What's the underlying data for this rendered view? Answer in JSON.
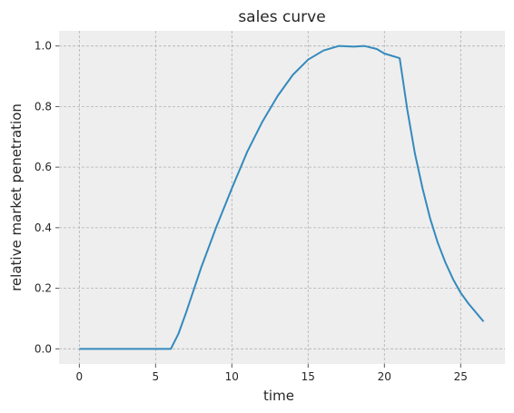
{
  "chart_data": {
    "type": "line",
    "title": "sales curve",
    "xlabel": "time",
    "ylabel": "relative market penetration",
    "xlim": [
      -1.33,
      27.9
    ],
    "ylim": [
      -0.05,
      1.05
    ],
    "xticks": [
      0,
      5,
      10,
      15,
      20,
      25
    ],
    "yticks": [
      0.0,
      0.2,
      0.4,
      0.6,
      0.8,
      1.0
    ],
    "xtick_labels": [
      "0",
      "5",
      "10",
      "15",
      "20",
      "25"
    ],
    "ytick_labels": [
      "0.0",
      "0.2",
      "0.4",
      "0.6",
      "0.8",
      "1.0"
    ],
    "grid": true,
    "line_color": "#348abd",
    "background_color": "#eeeeee",
    "series": [
      {
        "x": [
          0,
          1,
          2,
          3,
          4,
          5,
          6,
          6.5,
          7,
          7.5,
          8,
          9,
          10,
          11,
          12,
          13,
          14,
          15,
          16,
          17,
          18,
          18.7,
          19.5,
          20,
          21,
          21.5,
          22,
          22.5,
          23,
          23.5,
          24,
          24.5,
          25,
          25.5,
          26,
          26.5
        ],
        "y": [
          0,
          0,
          0,
          0,
          0,
          0,
          0,
          0.05,
          0.12,
          0.195,
          0.27,
          0.405,
          0.53,
          0.65,
          0.75,
          0.835,
          0.905,
          0.955,
          0.985,
          1.0,
          0.998,
          1.0,
          0.99,
          0.975,
          0.96,
          0.79,
          0.645,
          0.53,
          0.43,
          0.35,
          0.285,
          0.23,
          0.185,
          0.15,
          0.12,
          0.09
        ]
      }
    ]
  }
}
